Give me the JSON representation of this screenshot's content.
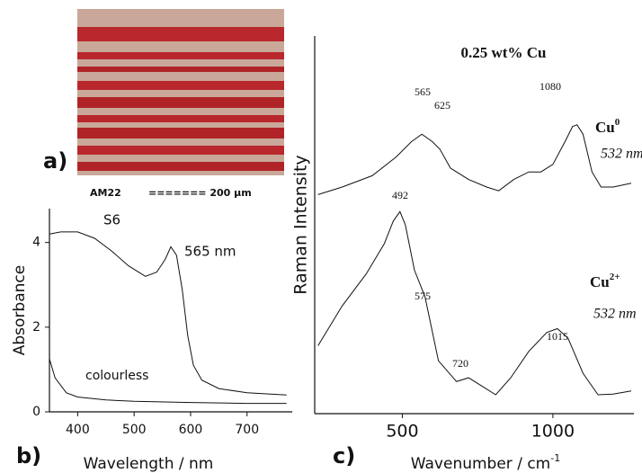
{
  "image_panel": {
    "panel_label": "a)",
    "sample": "AM22",
    "scale_bar": "======= 200 µm"
  },
  "chart_data": [
    {
      "type": "line",
      "panel_label": "b)",
      "x_label": "Wavelength  / nm",
      "y_label": "Absorbance",
      "xlim": [
        350,
        780
      ],
      "ylim": [
        0,
        4.8
      ],
      "xticks": [
        400,
        500,
        600,
        700
      ],
      "yticks": [
        0,
        2,
        4
      ],
      "annotations": [
        "565 nm"
      ],
      "series": [
        {
          "name": "S6",
          "color": "#111111",
          "x": [
            350,
            370,
            400,
            430,
            460,
            490,
            520,
            540,
            555,
            565,
            575,
            585,
            595,
            605,
            620,
            650,
            700,
            770
          ],
          "values": [
            4.2,
            4.25,
            4.25,
            4.1,
            3.8,
            3.45,
            3.2,
            3.3,
            3.6,
            3.9,
            3.7,
            2.9,
            1.8,
            1.1,
            0.75,
            0.55,
            0.45,
            0.4
          ]
        },
        {
          "name": "colourless",
          "color": "#111111",
          "x": [
            350,
            360,
            380,
            400,
            450,
            500,
            600,
            700,
            770
          ],
          "values": [
            1.25,
            0.8,
            0.45,
            0.35,
            0.28,
            0.25,
            0.22,
            0.2,
            0.2
          ]
        }
      ]
    },
    {
      "type": "line",
      "panel_label": "c)",
      "title": "0.25 wt% Cu",
      "x_label": "Wavenumber  / cm",
      "x_label_sup": "-1",
      "y_label": "Raman Intensity",
      "xlim": [
        209,
        1269
      ],
      "ylim": [
        0,
        100
      ],
      "xticks": [
        500,
        1000
      ],
      "peak_labels": [
        "565",
        "625",
        "1080",
        "492",
        "575",
        "720",
        "1015"
      ],
      "series": [
        {
          "name": "Cu",
          "name_sup": "0",
          "excitation": "532 nm",
          "color": "#111111",
          "x": [
            220,
            300,
            400,
            480,
            530,
            565,
            600,
            625,
            660,
            720,
            780,
            820,
            870,
            920,
            960,
            1000,
            1040,
            1065,
            1080,
            1100,
            1130,
            1160,
            1200,
            1260
          ],
          "values": [
            58,
            60,
            63,
            68,
            72,
            74,
            72,
            70,
            65,
            62,
            60,
            59,
            62,
            64,
            64,
            66,
            72,
            76,
            76.5,
            74,
            64,
            60,
            60,
            61
          ]
        },
        {
          "name": "Cu",
          "name_sup": "2+",
          "excitation": "532 nm",
          "color": "#111111",
          "x": [
            220,
            300,
            380,
            440,
            470,
            492,
            510,
            540,
            575,
            620,
            680,
            720,
            770,
            810,
            860,
            920,
            980,
            1015,
            1050,
            1100,
            1150,
            1200,
            1260
          ],
          "values": [
            18,
            28.5,
            37,
            45,
            51,
            53.5,
            50,
            38,
            31,
            14,
            8.5,
            9.5,
            7,
            5,
            9.5,
            16.5,
            21.5,
            22.5,
            20,
            10.7,
            5,
            5.2,
            6
          ]
        }
      ]
    }
  ]
}
